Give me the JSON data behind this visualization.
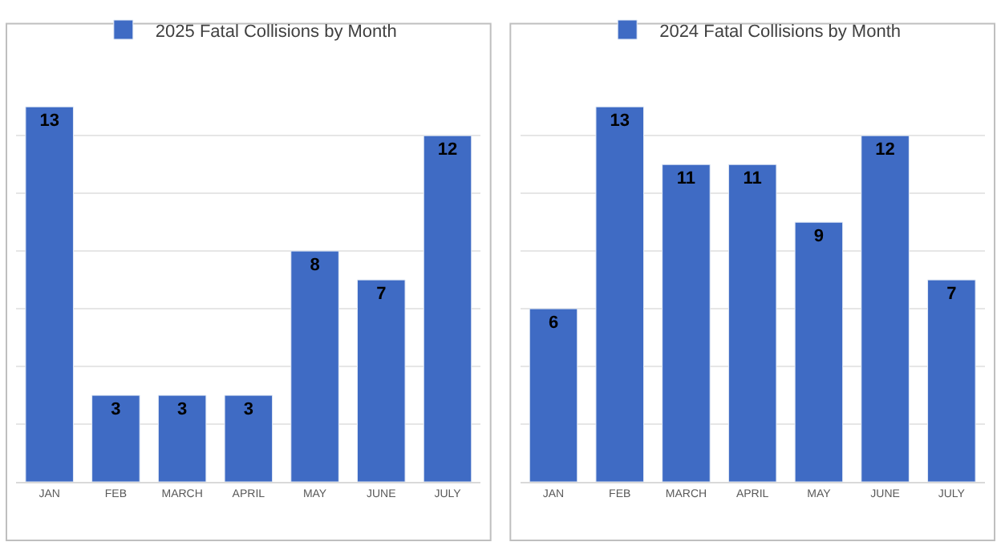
{
  "chart_data": [
    {
      "type": "bar",
      "categories": [
        "JAN",
        "FEB",
        "MARCH",
        "APRIL",
        "MAY",
        "JUNE",
        "JULY"
      ],
      "series": [
        {
          "name": "2025 Fatal Collisions by Month",
          "color": "#3f6bc4",
          "values": [
            13,
            3,
            3,
            3,
            8,
            7,
            12
          ]
        }
      ],
      "tick_labels": "x",
      "grid": "y",
      "legend": "top",
      "data_labels": true
    },
    {
      "type": "bar",
      "categories": [
        "JAN",
        "FEB",
        "MARCH",
        "APRIL",
        "MAY",
        "JUNE",
        "JULY"
      ],
      "series": [
        {
          "name": "2024 Fatal Collisions by Month",
          "color": "#3f6bc4",
          "values": [
            6,
            13,
            11,
            11,
            9,
            12,
            7
          ]
        }
      ],
      "tick_labels": "x",
      "grid": "y",
      "legend": "top",
      "data_labels": true
    }
  ]
}
